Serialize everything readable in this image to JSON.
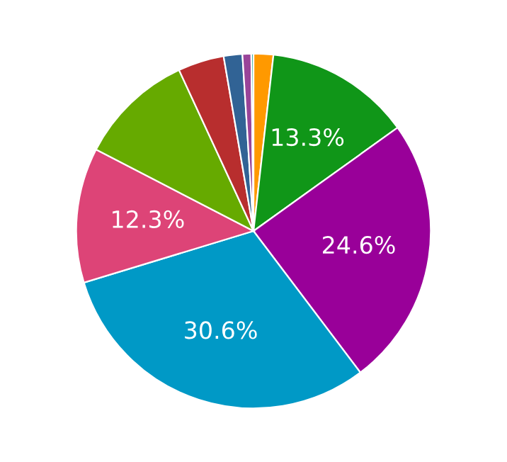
{
  "chart_data": {
    "type": "pie",
    "categories": [
      null,
      null,
      null,
      null,
      null,
      null,
      null,
      null,
      null,
      null
    ],
    "values": [
      1.8,
      13.3,
      24.6,
      30.6,
      12.3,
      10.5,
      4.2,
      1.7,
      0.8,
      0.2
    ],
    "colors": [
      "#ff9900",
      "#109618",
      "#990099",
      "#0099c6",
      "#dd4477",
      "#66aa00",
      "#b82e2e",
      "#316395",
      "#994499",
      "#22aa99"
    ],
    "value_labels": [
      null,
      "13.3%",
      "24.6%",
      "30.6%",
      "12.3%",
      null,
      null,
      null,
      null,
      null
    ]
  }
}
